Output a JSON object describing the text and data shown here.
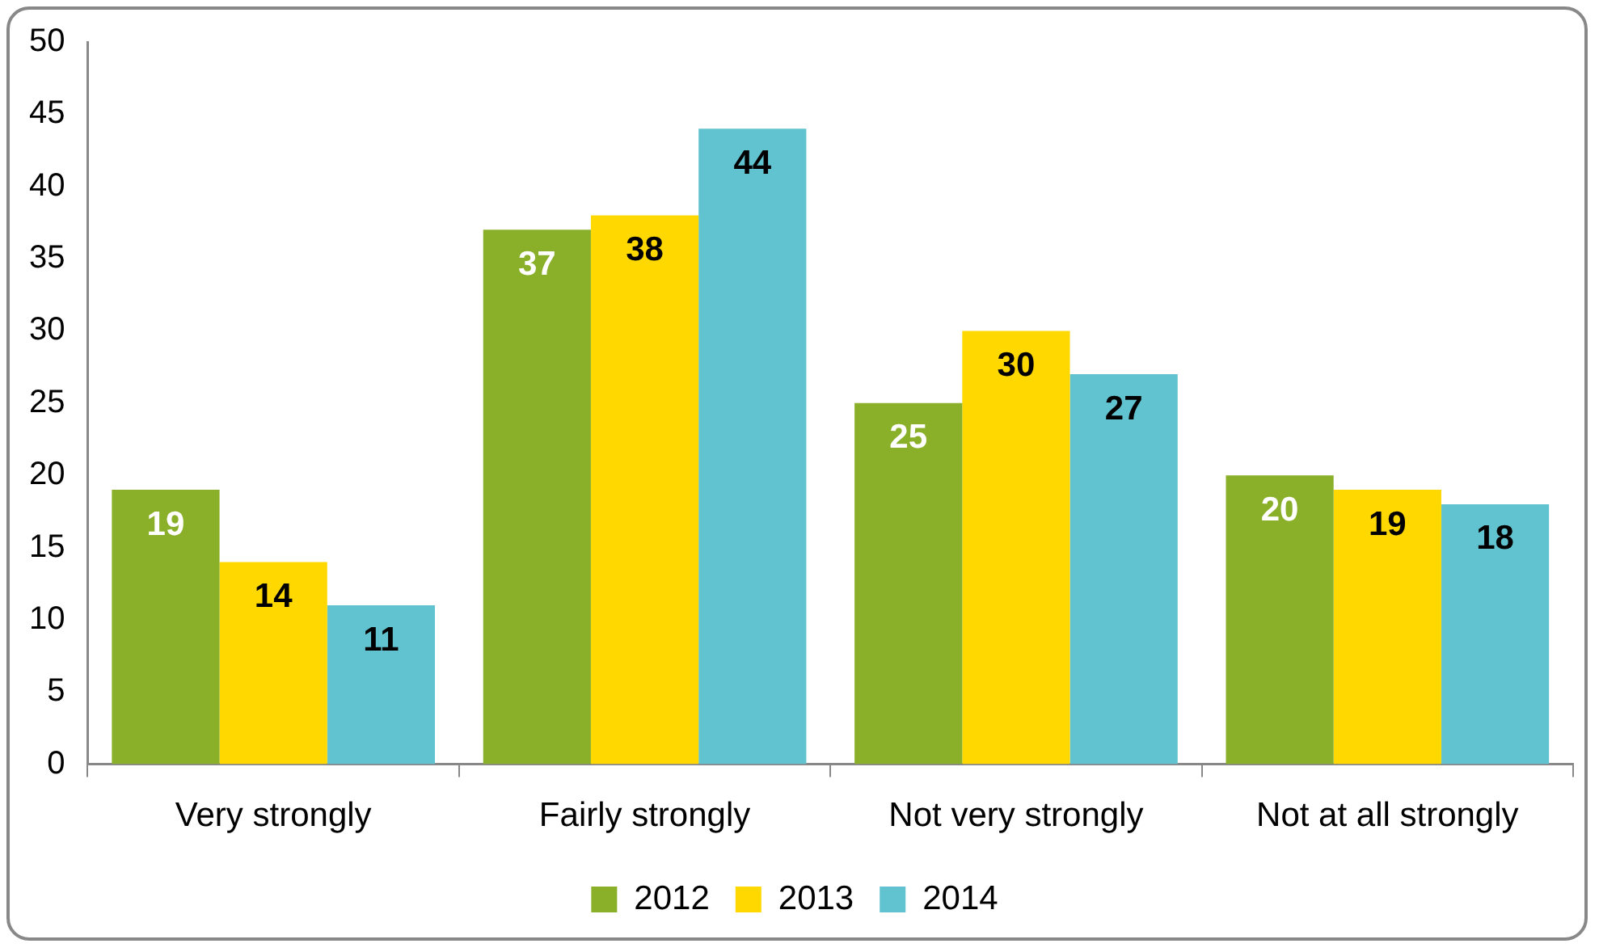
{
  "chart_data": {
    "type": "bar",
    "categories": [
      "Very strongly",
      "Fairly strongly",
      "Not very strongly",
      "Not at all strongly"
    ],
    "series": [
      {
        "name": "2012",
        "color": "#8ab02a",
        "values": [
          19,
          37,
          25,
          20
        ]
      },
      {
        "name": "2013",
        "color": "#ffd800",
        "values": [
          14,
          38,
          30,
          19
        ]
      },
      {
        "name": "2014",
        "color": "#62c3d0",
        "values": [
          11,
          44,
          27,
          18
        ]
      }
    ],
    "ylim": [
      0,
      50
    ],
    "yticks": [
      0,
      5,
      10,
      15,
      20,
      25,
      30,
      35,
      40,
      45,
      50
    ],
    "grid": false,
    "legend": "bottom",
    "data_labels": true
  }
}
